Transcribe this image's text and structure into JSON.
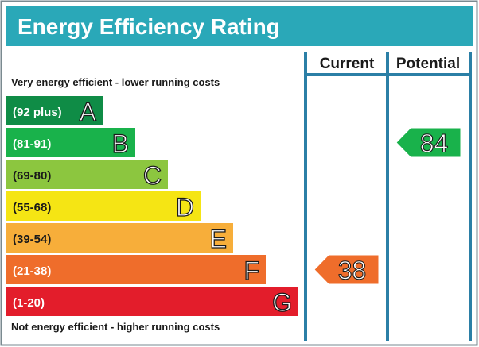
{
  "header": {
    "title": "Energy Efficiency Rating",
    "color": "#2aa8b8"
  },
  "columns": {
    "current": "Current",
    "potential": "Potential"
  },
  "captions": {
    "top": "Very energy efficient - lower running costs",
    "bottom": "Not energy efficient - higher running costs"
  },
  "chart_data": {
    "type": "bar",
    "title": "Energy Efficiency Rating",
    "bands": [
      {
        "range": "(92 plus)",
        "letter": "A",
        "color": "#0f8c46"
      },
      {
        "range": "(81-91)",
        "letter": "B",
        "color": "#19b24b"
      },
      {
        "range": "(69-80)",
        "letter": "C",
        "color": "#8cc63f"
      },
      {
        "range": "(55-68)",
        "letter": "D",
        "color": "#f5e514"
      },
      {
        "range": "(39-54)",
        "letter": "E",
        "color": "#f7ae3a"
      },
      {
        "range": "(21-38)",
        "letter": "F",
        "color": "#ef6d2b"
      },
      {
        "range": "(1-20)",
        "letter": "G",
        "color": "#e31d2b"
      }
    ],
    "current": {
      "value": 38,
      "band": "F",
      "color": "#ef6d2b"
    },
    "potential": {
      "value": 84,
      "band": "B",
      "color": "#19b24b"
    },
    "frame_color": "#2b7fa6"
  }
}
